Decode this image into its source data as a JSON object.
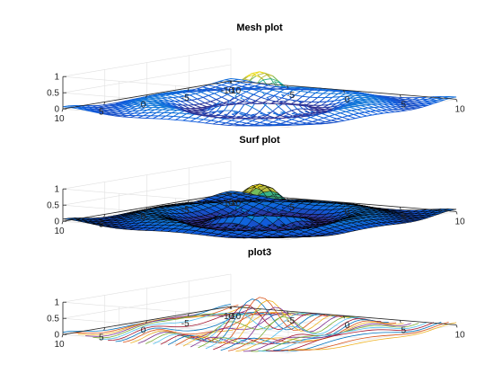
{
  "figure": {
    "colors": {
      "background": "#ffffff",
      "axis": "#262626",
      "grid": "#e0e0e0",
      "parula_low": "#352a87",
      "parula_mid": "#21a9a1",
      "parula_high": "#f9fb0e",
      "plot3_palette": [
        "#0072bd",
        "#d95319",
        "#edb120",
        "#7e2f8e",
        "#77ac30",
        "#4dbeee",
        "#a2142f"
      ]
    }
  },
  "chart_data": [
    {
      "type": "surface",
      "style": "mesh",
      "title": "Mesh plot",
      "xlim": [
        -10,
        10
      ],
      "ylim": [
        -10,
        10
      ],
      "zlim": [
        0,
        1
      ],
      "x_ticks": [
        "-10",
        "-5",
        "0",
        "5",
        "10"
      ],
      "y_ticks": [
        "10",
        "5",
        "0",
        "-5",
        "-10"
      ],
      "z_ticks": [
        "0",
        "0.5",
        "1"
      ],
      "grid": true,
      "function": "sinc",
      "peak": 1.0,
      "colormap": "parula"
    },
    {
      "type": "surface",
      "style": "surf",
      "title": "Surf plot",
      "xlim": [
        -10,
        10
      ],
      "ylim": [
        -10,
        10
      ],
      "zlim": [
        0,
        1
      ],
      "x_ticks": [
        "-10",
        "-5",
        "0",
        "5",
        "10"
      ],
      "y_ticks": [
        "10",
        "5",
        "0",
        "-5",
        "-10"
      ],
      "z_ticks": [
        "0",
        "0.5",
        "1"
      ],
      "grid": true,
      "function": "sinc",
      "peak": 1.0,
      "colormap": "parula",
      "edge_color": "black"
    },
    {
      "type": "line",
      "style": "plot3",
      "title": "plot3",
      "xlim": [
        -10,
        10
      ],
      "ylim": [
        -10,
        10
      ],
      "zlim": [
        0,
        1
      ],
      "x_ticks": [
        "-10",
        "-5",
        "0",
        "5",
        "10"
      ],
      "y_ticks": [
        "10",
        "5",
        "0",
        "-5",
        "-10"
      ],
      "z_ticks": [
        "0",
        "0.5",
        "1"
      ],
      "grid": true,
      "function": "sinc",
      "peak": 1.0
    }
  ]
}
